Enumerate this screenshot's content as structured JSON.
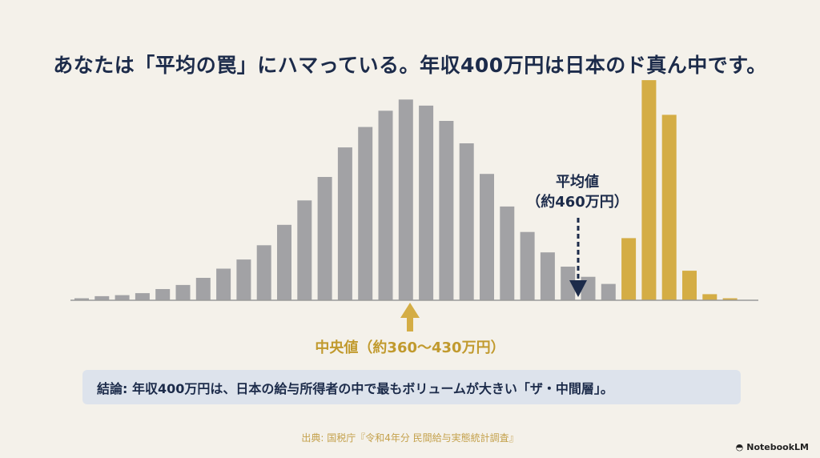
{
  "title": "あなたは「平均の罠」にハマっている。年収400万円は日本のド真ん中です。",
  "conclusion": "結論: 年収400万円は、日本の給与所得者の中で最もボリュームが大きい「ザ・中間層」。",
  "source": "出典: 国税庁『令和4年分 民間給与実態統計調査』",
  "brand": "NotebookLM",
  "brand_icon": "notebooklm-logo-icon",
  "colors": {
    "background": "#f4f1ea",
    "gray_bar": "#a2a2a5",
    "gold_bar": "#d4ad45",
    "navy": "#1c2b4a",
    "gold_text": "#c19a2e",
    "baseline": "#9a9a9a"
  },
  "chart_data": {
    "type": "bar",
    "title": "",
    "xlabel": "",
    "ylabel": "",
    "values": [
      1,
      2,
      2.5,
      3.5,
      5.5,
      7.5,
      11,
      15.5,
      20,
      27,
      37,
      49,
      60.5,
      75,
      85,
      93,
      98.5,
      95.5,
      88,
      77,
      62,
      46,
      33.5,
      23.5,
      16.5,
      11.5,
      8,
      30.5,
      108,
      91,
      14.5,
      3,
      1
    ],
    "highlight_start_index": 27,
    "ylim": [
      0,
      110
    ],
    "annotations": {
      "mean": {
        "line1": "平均値",
        "line2": "（約460万円）",
        "bar_index": 24
      },
      "median": {
        "label": "中央値（約360〜430万円）",
        "bar_index": 16
      }
    }
  }
}
